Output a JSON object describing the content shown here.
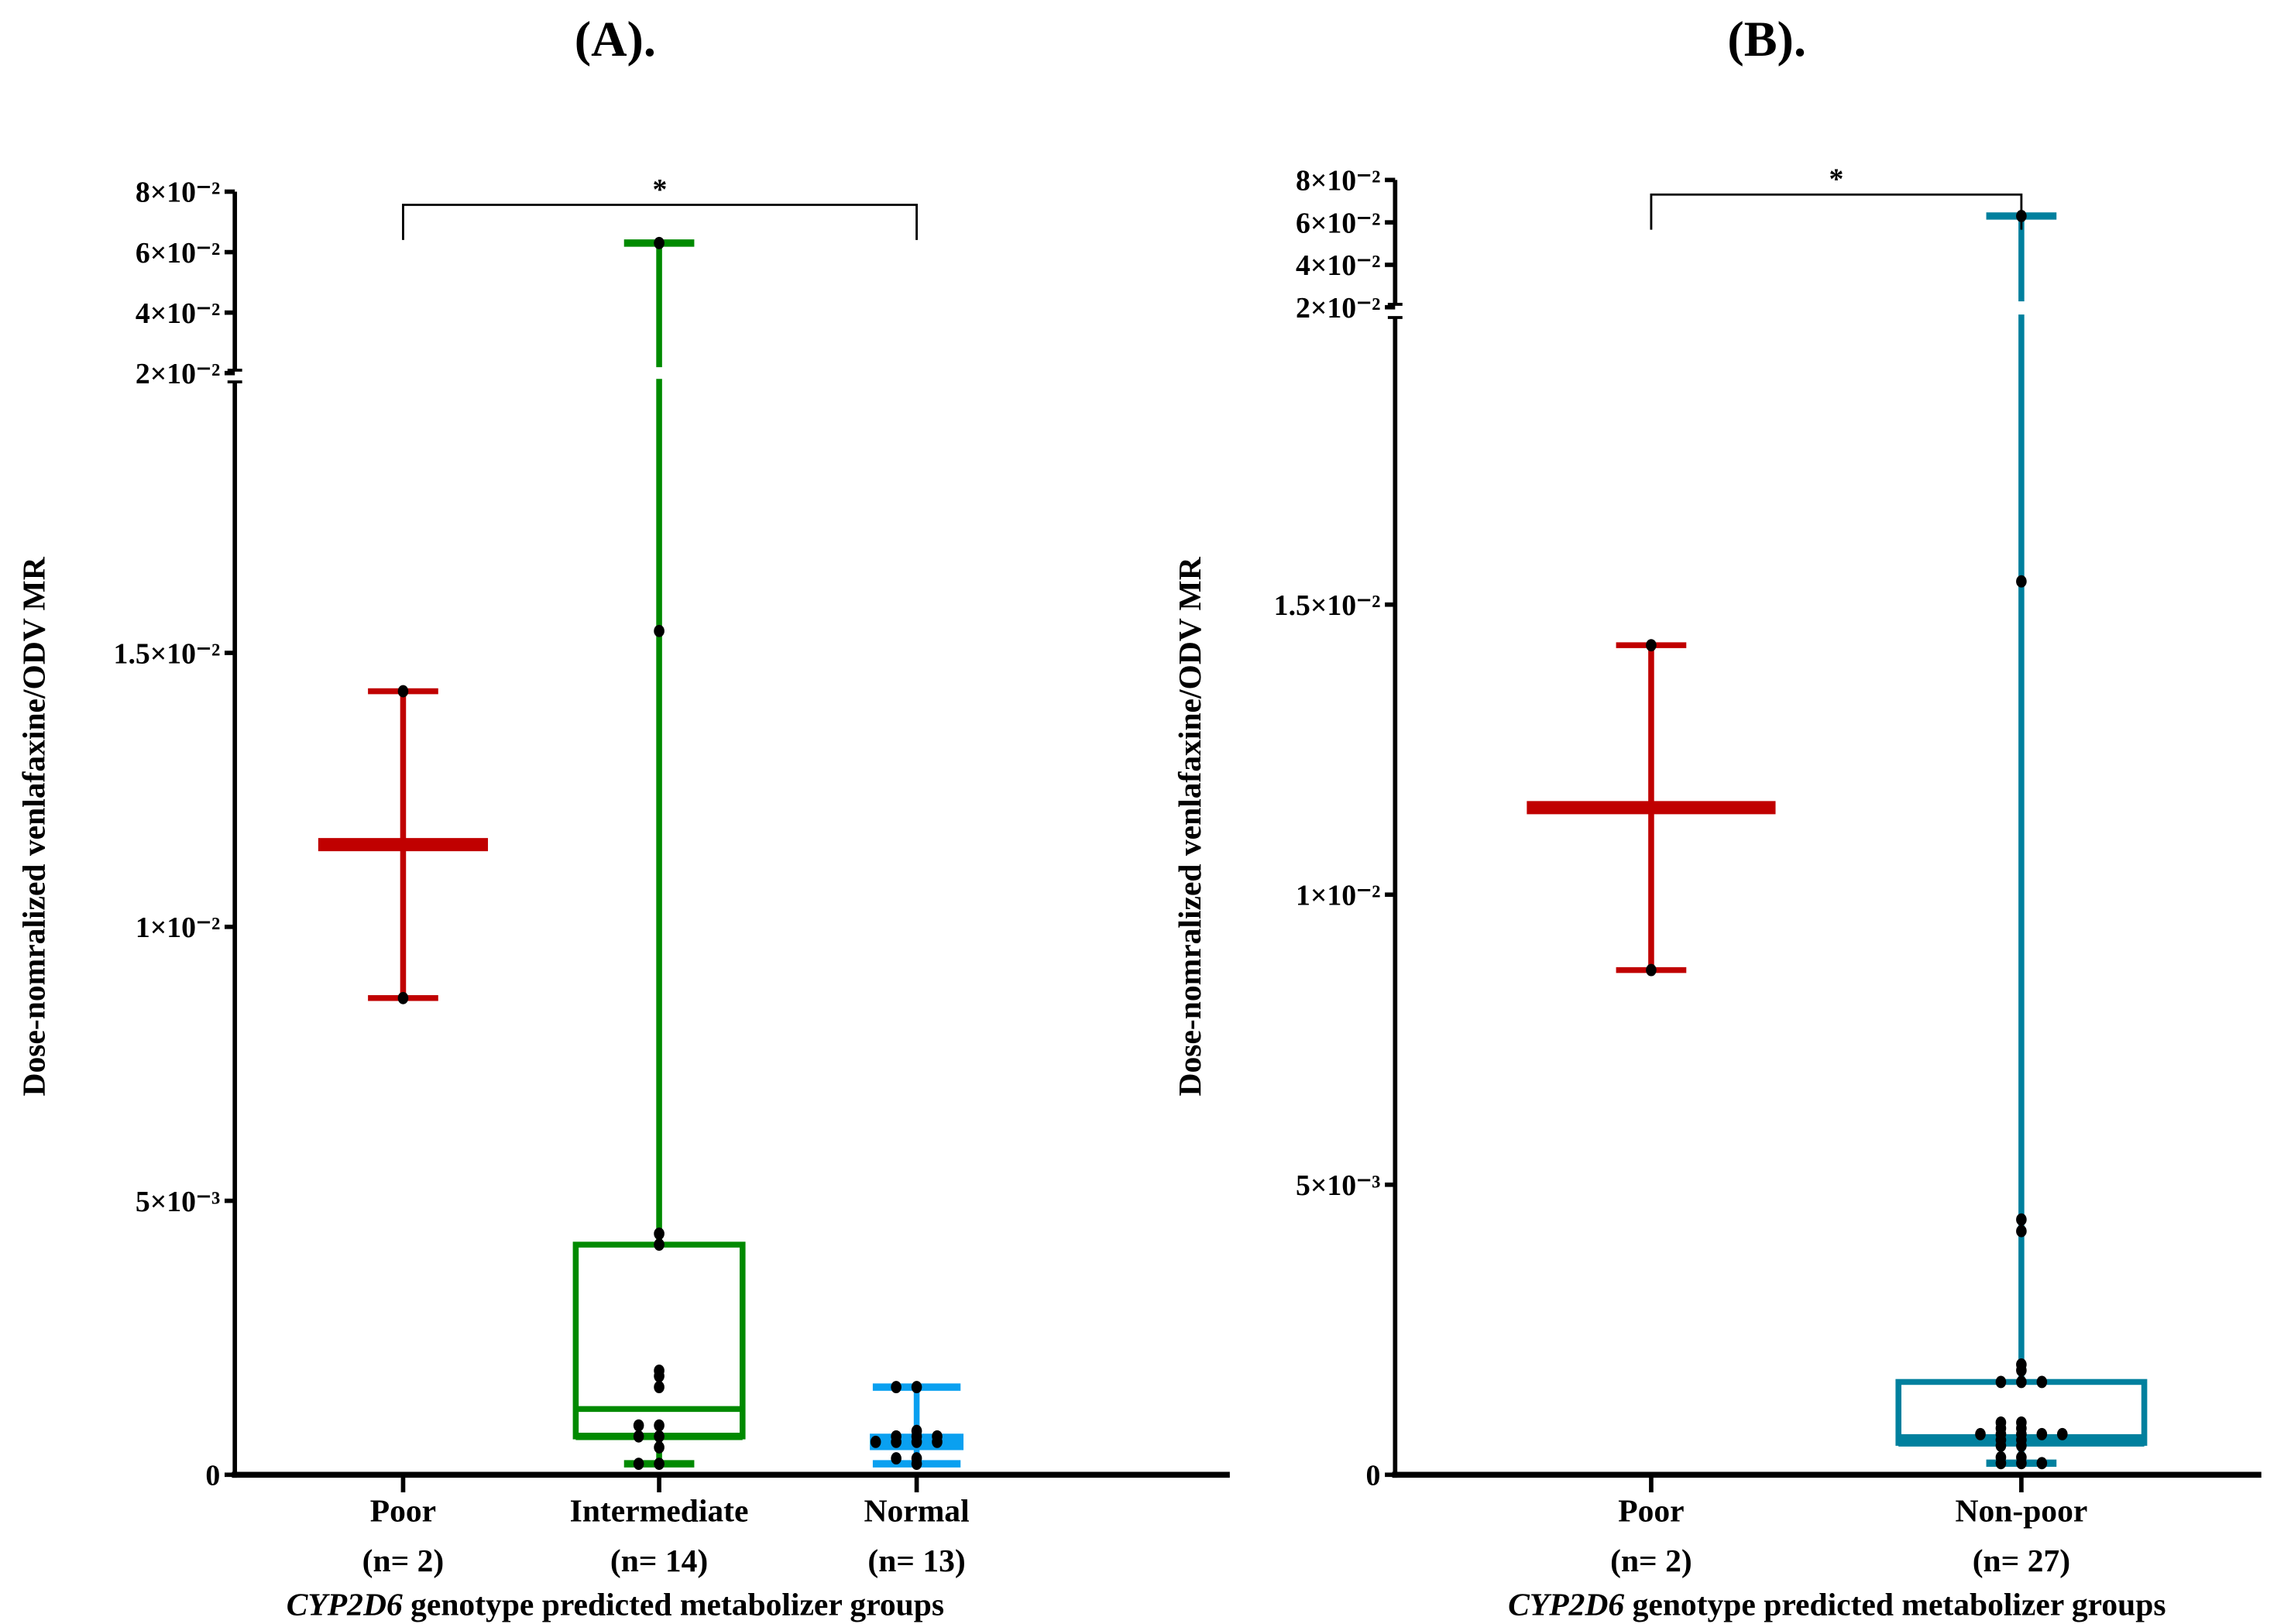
{
  "chart_data": [
    {
      "type": "box",
      "title": "(A).",
      "ylabel": "Dose-nomralized venlafaxine/ODV MR",
      "xlabel_italic": "CYP2D6",
      "xlabel_rest": " genotype predicted metabolizer groups",
      "y_axis": {
        "broken": true,
        "lower_range": [
          0,
          0.02
        ],
        "upper_range": [
          0.02,
          0.08
        ],
        "lower_ticks": [
          {
            "v": 0,
            "label": "0"
          },
          {
            "v": 0.005,
            "label": "5×10⁻³"
          },
          {
            "v": 0.01,
            "label": "1×10⁻²"
          },
          {
            "v": 0.015,
            "label": "1.5×10⁻²"
          }
        ],
        "upper_ticks": [
          {
            "v": 0.02,
            "label": "2×10⁻²"
          },
          {
            "v": 0.04,
            "label": "4×10⁻²"
          },
          {
            "v": 0.06,
            "label": "6×10⁻²"
          },
          {
            "v": 0.08,
            "label": "8×10⁻²"
          }
        ]
      },
      "significance": {
        "from": 0,
        "to": 2,
        "label": "*"
      },
      "groups": [
        {
          "name": "Poor",
          "n_label": "(n= 2)",
          "color": "#c00000",
          "style": "mean-range",
          "center": 0.0115,
          "min": 0.0087,
          "max": 0.0143,
          "points": [
            0.0143,
            0.0087
          ]
        },
        {
          "name": "Intermediate",
          "n_label": "(n= 14)",
          "color": "#008a00",
          "style": "box",
          "min": 0.0002,
          "q1": 0.0007,
          "median": 0.0012,
          "q3": 0.0042,
          "max": 0.063,
          "points": [
            0.063,
            0.0154,
            0.0044,
            0.0042,
            0.0019,
            0.0018,
            0.0016,
            0.0009,
            0.0009,
            0.0007,
            0.0007,
            0.0005,
            0.0002,
            0.0002
          ]
        },
        {
          "name": "Normal",
          "n_label": "(n= 13)",
          "color": "#0aa0f0",
          "style": "box-filled",
          "min": 0.0002,
          "q1": 0.00045,
          "median": 0.0006,
          "q3": 0.00075,
          "max": 0.0016,
          "points": [
            0.0016,
            0.0016,
            0.0008,
            0.0007,
            0.0007,
            0.0006,
            0.0006,
            0.0006,
            0.0006,
            0.0007,
            0.0003,
            0.0003,
            0.0002
          ]
        }
      ]
    },
    {
      "type": "box",
      "title": "(B).",
      "ylabel": "Dose-nomralized venlafaxine/ODV MR",
      "xlabel_italic": "CYP2D6",
      "xlabel_rest": " genotype predicted metabolizer groups",
      "y_axis": {
        "broken": true,
        "lower_range": [
          0,
          0.02
        ],
        "upper_range": [
          0.02,
          0.08
        ],
        "lower_ticks": [
          {
            "v": 0,
            "label": "0"
          },
          {
            "v": 0.005,
            "label": "5×10⁻³"
          },
          {
            "v": 0.01,
            "label": "1×10⁻²"
          },
          {
            "v": 0.015,
            "label": "1.5×10⁻²"
          }
        ],
        "upper_ticks": [
          {
            "v": 0.02,
            "label": "2×10⁻²"
          },
          {
            "v": 0.04,
            "label": "4×10⁻²"
          },
          {
            "v": 0.06,
            "label": "6×10⁻²"
          },
          {
            "v": 0.08,
            "label": "8×10⁻²"
          }
        ]
      },
      "significance": {
        "from": 0,
        "to": 1,
        "label": "*"
      },
      "groups": [
        {
          "name": "Poor",
          "n_label": "(n= 2)",
          "color": "#c00000",
          "style": "mean-range",
          "center": 0.0115,
          "min": 0.0087,
          "max": 0.0143,
          "points": [
            0.0143,
            0.0087
          ]
        },
        {
          "name": "Non-poor",
          "n_label": "(n= 27)",
          "color": "#00809e",
          "style": "box",
          "min": 0.0002,
          "q1": 0.00055,
          "median": 0.00065,
          "q3": 0.0016,
          "max": 0.063,
          "points": [
            0.063,
            0.0154,
            0.0044,
            0.0042,
            0.0019,
            0.0018,
            0.0016,
            0.0016,
            0.0016,
            0.0009,
            0.0009,
            0.0008,
            0.0008,
            0.0007,
            0.0007,
            0.0007,
            0.0007,
            0.0007,
            0.0006,
            0.0006,
            0.0005,
            0.0005,
            0.0003,
            0.0003,
            0.0002,
            0.0002,
            0.0002
          ]
        }
      ]
    }
  ]
}
